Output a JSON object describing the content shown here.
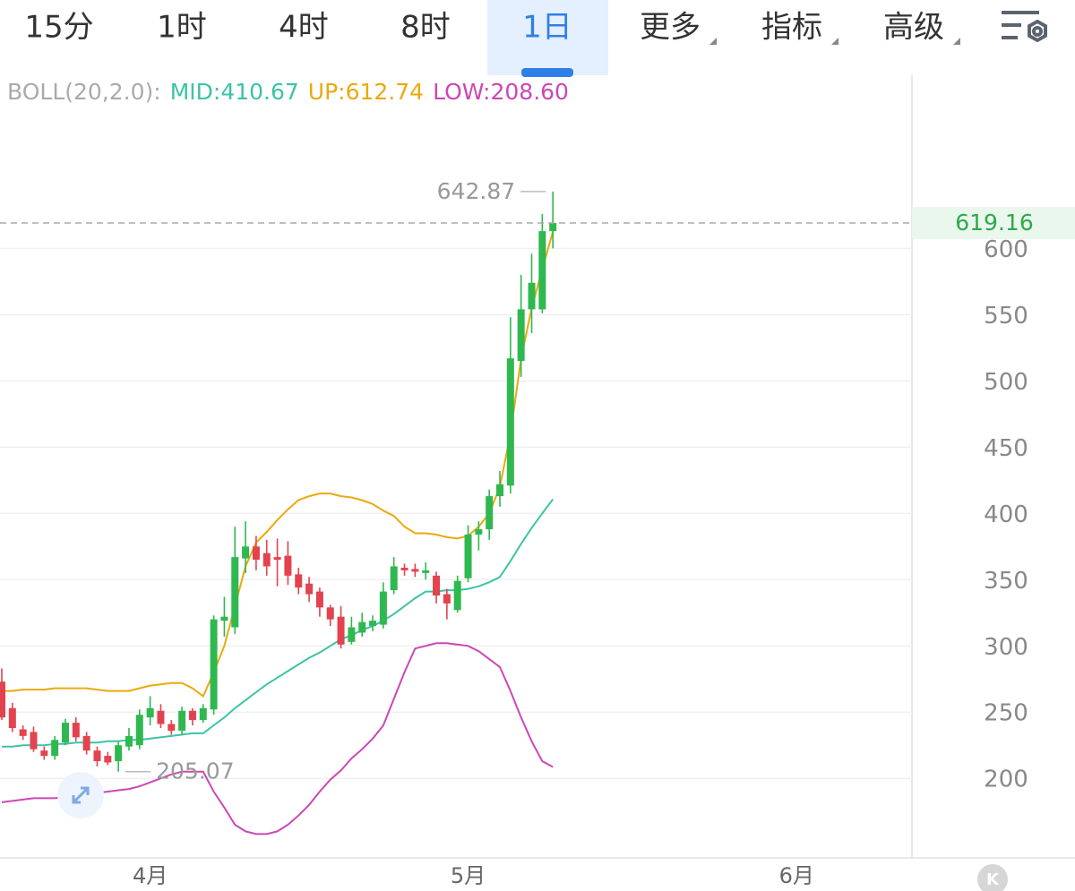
{
  "toolbar": {
    "tabs": [
      "15分",
      "1时",
      "4时",
      "8时",
      "1日",
      "更多",
      "指标",
      "高级"
    ],
    "active": "1日"
  },
  "logo": "K",
  "chart_data": {
    "type": "candlestick",
    "categories": [
      null,
      null,
      null,
      null,
      null,
      null,
      null,
      null,
      null,
      null,
      null,
      null,
      null,
      null,
      "4月",
      null,
      null,
      null,
      null,
      null,
      null,
      null,
      null,
      null,
      null,
      null,
      null,
      null,
      null,
      null,
      null,
      null,
      null,
      null,
      null,
      null,
      null,
      null,
      null,
      null,
      null,
      null,
      null,
      null,
      "5月",
      null,
      null,
      null,
      null,
      null,
      null,
      null,
      null,
      null,
      null,
      null,
      null,
      null,
      null,
      null,
      null,
      null,
      null,
      null,
      null,
      null,
      null,
      null,
      null,
      null,
      null,
      null,
      null,
      null,
      null,
      "6月",
      null,
      null,
      null,
      null,
      null,
      null,
      null,
      null,
      null,
      null
    ],
    "open": [
      273,
      253,
      237,
      235,
      221,
      217,
      227,
      242,
      232,
      221,
      217,
      213,
      224,
      225,
      246,
      251,
      241,
      236,
      251,
      244,
      252,
      319,
      314,
      366,
      375,
      370,
      367,
      368,
      354,
      347,
      341,
      329,
      322,
      303,
      310,
      315,
      316,
      342,
      359,
      358,
      355,
      353,
      339,
      327,
      351,
      384,
      388,
      413,
      421,
      515,
      554,
      554,
      613,
      null,
      null,
      null,
      null,
      null,
      null,
      null,
      null,
      null,
      null,
      null,
      null,
      null,
      null,
      null,
      null,
      null,
      null,
      null,
      null,
      null,
      null,
      null,
      null,
      null,
      null,
      null,
      null,
      null,
      null,
      null,
      null,
      null
    ],
    "high": [
      283,
      257,
      240,
      239,
      224,
      232,
      245,
      246,
      235,
      224,
      220,
      228,
      238,
      252,
      262,
      256,
      244,
      254,
      253,
      256,
      323,
      337,
      390,
      394,
      383,
      380,
      381,
      379,
      359,
      352,
      344,
      331,
      330,
      322,
      325,
      323,
      348,
      367,
      362,
      362,
      363,
      356,
      343,
      353,
      391,
      394,
      418,
      432,
      548,
      580,
      596,
      626,
      642.87,
      null,
      null,
      null,
      null,
      null,
      null,
      null,
      null,
      null,
      null,
      null,
      null,
      null,
      null,
      null,
      null,
      null,
      null,
      null,
      null,
      null,
      null,
      null,
      null,
      null,
      null,
      null,
      null,
      null,
      null,
      null,
      null,
      null
    ],
    "low": [
      244,
      235,
      229,
      220,
      214,
      214,
      225,
      228,
      218,
      209,
      210,
      205.07,
      221,
      222,
      240,
      238,
      233,
      233,
      240,
      242,
      248,
      307,
      309,
      355,
      357,
      353,
      345,
      346,
      339,
      333,
      322,
      315,
      298,
      301,
      307,
      311,
      313,
      339,
      353,
      352,
      350,
      332,
      320,
      325,
      348,
      372,
      380,
      405,
      415,
      503,
      536,
      551,
      600,
      null,
      null,
      null,
      null,
      null,
      null,
      null,
      null,
      null,
      null,
      null,
      null,
      null,
      null,
      null,
      null,
      null,
      null,
      null,
      null,
      null,
      null,
      null,
      null,
      null,
      null,
      null,
      null,
      null,
      null,
      null,
      null,
      null
    ],
    "close": [
      246,
      238,
      232,
      222,
      217,
      229,
      242,
      231,
      221,
      213,
      212,
      225,
      232,
      248,
      253,
      241,
      236,
      251,
      244,
      253,
      320,
      322,
      367,
      375,
      365,
      360,
      365,
      353,
      344,
      339,
      329,
      320,
      301,
      314,
      318,
      319,
      341,
      360,
      357,
      356,
      357,
      338,
      332,
      349,
      384,
      388,
      413,
      422,
      517,
      554,
      574,
      613,
      619.16,
      null,
      null,
      null,
      null,
      null,
      null,
      null,
      null,
      null,
      null,
      null,
      null,
      null,
      null,
      null,
      null,
      null,
      null,
      null,
      null,
      null,
      null,
      null,
      null,
      null,
      null,
      null,
      null,
      null,
      null,
      null,
      null,
      null
    ],
    "up_color": "#2fb84f",
    "down_color": "#e2434f",
    "indicator": {
      "label": "BOLL(20,2.0):",
      "series": [
        {
          "name": "MID:410.67",
          "color": "#3cc3a6",
          "values": [
            224,
            224,
            225,
            225,
            225,
            226,
            226,
            227,
            227,
            227,
            228,
            228,
            229,
            229,
            230,
            231,
            232,
            233,
            234,
            234,
            240,
            246,
            253,
            259,
            265,
            271,
            276,
            281,
            286,
            291,
            295,
            300,
            305,
            308,
            312,
            315,
            319,
            324,
            330,
            336,
            341,
            341,
            342,
            342,
            343,
            345,
            348,
            352,
            364,
            377,
            389,
            400,
            410.67,
            null,
            null,
            null,
            null,
            null,
            null,
            null,
            null,
            null,
            null,
            null,
            null,
            null,
            null,
            null,
            null,
            null,
            null,
            null,
            null,
            null,
            null,
            null,
            null,
            null,
            null,
            null,
            null,
            null,
            null,
            null,
            null,
            null
          ]
        },
        {
          "name": "UP:612.74",
          "color": "#e9aa0c",
          "values": [
            266,
            266,
            267,
            267,
            267,
            268,
            268,
            268,
            268,
            267,
            266,
            266,
            266,
            268,
            270,
            271,
            272,
            272,
            268,
            262,
            280,
            300,
            330,
            360,
            378,
            386,
            395,
            403,
            410,
            413,
            415,
            415,
            413,
            412,
            410,
            407,
            402,
            398,
            390,
            385,
            385,
            384,
            382,
            381,
            383,
            390,
            400,
            420,
            460,
            517,
            555,
            584,
            612.74,
            null,
            null,
            null,
            null,
            null,
            null,
            null,
            null,
            null,
            null,
            null,
            null,
            null,
            null,
            null,
            null,
            null,
            null,
            null,
            null,
            null,
            null,
            null,
            null,
            null,
            null,
            null,
            null,
            null,
            null,
            null,
            null,
            null
          ]
        },
        {
          "name": "LOW:208.60",
          "color": "#cc47b4",
          "values": [
            182,
            183,
            184,
            185,
            185,
            185,
            186,
            187,
            188,
            189,
            190,
            191,
            192,
            194,
            197,
            200,
            203,
            205,
            205,
            205,
            190,
            178,
            165,
            160,
            158,
            158,
            160,
            165,
            172,
            180,
            190,
            199,
            206,
            215,
            222,
            230,
            240,
            260,
            280,
            298,
            300,
            302,
            302,
            301,
            300,
            296,
            290,
            284,
            266,
            246,
            228,
            213,
            208.6,
            null,
            null,
            null,
            null,
            null,
            null,
            null,
            null,
            null,
            null,
            null,
            null,
            null,
            null,
            null,
            null,
            null,
            null,
            null,
            null,
            null,
            null,
            null,
            null,
            null,
            null,
            null,
            null,
            null,
            null,
            null,
            null,
            null
          ]
        }
      ]
    },
    "ylim": [
      140,
      730
    ],
    "yticks": [
      200,
      250,
      300,
      350,
      400,
      450,
      500,
      550,
      600
    ],
    "grid": true
  }
}
